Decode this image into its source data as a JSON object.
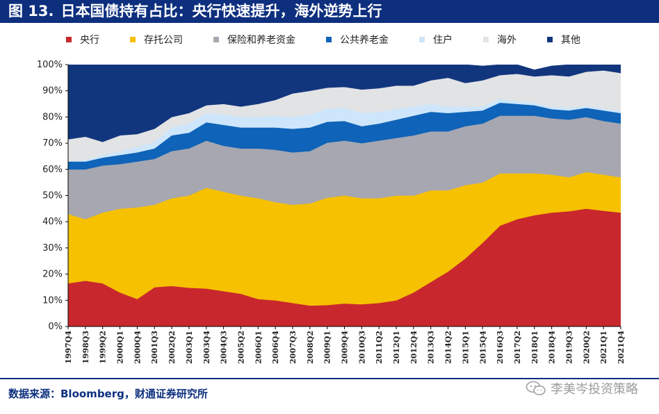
{
  "figure": {
    "number": "图 13.",
    "title": "日本国债持有占比：央行快速提升，海外逆势上行"
  },
  "footer": {
    "source": "数据来源：Bloomberg，财通证券研究所",
    "watermark": "李美岑投资策略"
  },
  "colors": {
    "title_bg": "#0d2f7e",
    "axis": "#000000"
  },
  "chart_data": {
    "type": "area",
    "stacked": true,
    "title": "",
    "xlabel": "",
    "ylabel": "",
    "ylim": [
      0,
      100
    ],
    "yticks": [
      0,
      10,
      20,
      30,
      40,
      50,
      60,
      70,
      80,
      90,
      100
    ],
    "ytick_labels": [
      "0%",
      "10%",
      "20%",
      "30%",
      "40%",
      "50%",
      "60%",
      "70%",
      "80%",
      "90%",
      "100%"
    ],
    "legend_position": "top",
    "grid": false,
    "x_tick_labels": [
      "1997Q4",
      "1998Q3",
      "1999Q2",
      "2000Q1",
      "2000Q4",
      "2001Q3",
      "2002Q2",
      "2003Q1",
      "2003Q4",
      "2004Q3",
      "2005Q2",
      "2006Q1",
      "2006Q4",
      "2007Q3",
      "2008Q2",
      "2009Q1",
      "2009Q4",
      "2010Q3",
      "2011Q2",
      "2012Q1",
      "2012Q4",
      "2013Q3",
      "2014Q2",
      "2015Q1",
      "2015Q4",
      "2016Q3",
      "2017Q2",
      "2018Q1",
      "2018Q4",
      "2019Q3",
      "2020Q2",
      "2021Q1",
      "2021Q4"
    ],
    "series": [
      {
        "name": "央行",
        "color": "#c8282d",
        "values": [
          16.5,
          17.5,
          16.5,
          13,
          10.5,
          15,
          15.5,
          14.8,
          14.5,
          13.5,
          12.5,
          10.5,
          10,
          9,
          8,
          8.2,
          8.8,
          8.5,
          9,
          10,
          13,
          17,
          21,
          26,
          32,
          38.5,
          41,
          42.5,
          43.5,
          44,
          45,
          44.2,
          43.5
        ]
      },
      {
        "name": "存托公司",
        "color": "#f6c100",
        "values": [
          26.5,
          23.5,
          27,
          32,
          35,
          31.5,
          33.5,
          35.2,
          38.5,
          38,
          37.5,
          38.5,
          37.5,
          37.5,
          39,
          41,
          41.2,
          40.5,
          40,
          40,
          37,
          35,
          31,
          28,
          23,
          20,
          17.5,
          16,
          14.5,
          13,
          14,
          13.8,
          13.5
        ]
      },
      {
        "name": "保险和养老资金",
        "color": "#a6a7b1",
        "values": [
          17,
          19,
          18,
          17,
          17.5,
          17.5,
          18,
          18,
          18,
          17.5,
          18,
          19,
          20,
          20,
          20,
          21,
          21,
          21,
          22,
          22,
          23,
          22.5,
          22.5,
          22.5,
          22.5,
          22,
          22,
          22,
          21.5,
          22,
          21,
          20.5,
          20.5
        ]
      },
      {
        "name": "公共养老金",
        "color": "#0f63b8",
        "values": [
          3,
          3,
          3,
          3.5,
          3.5,
          4,
          6,
          6,
          7,
          8,
          8,
          8,
          8.5,
          9,
          9,
          8,
          7.5,
          6.5,
          6.5,
          7,
          7.5,
          7.5,
          7,
          5.5,
          5,
          5,
          4.5,
          4,
          3.5,
          3.5,
          3.5,
          4,
          4
        ]
      },
      {
        "name": "住户",
        "color": "#cde6fb",
        "values": [
          0,
          0.5,
          1,
          1.5,
          2,
          2.5,
          3,
          3.5,
          3.5,
          4,
          4,
          4,
          4.5,
          4.5,
          5,
          5,
          5,
          5,
          4.5,
          4,
          3.5,
          3,
          2.5,
          2,
          1.5,
          1.5,
          1,
          1,
          1,
          1,
          0.8,
          0.8,
          0.8
        ]
      },
      {
        "name": "海外",
        "color": "#e2e3e5",
        "values": [
          8.5,
          9,
          5,
          6,
          5,
          5,
          4,
          4,
          3,
          4,
          4,
          5,
          6,
          9,
          9,
          8,
          8,
          9,
          9,
          9,
          8,
          9,
          11,
          9,
          10,
          9,
          10.5,
          10,
          12,
          12,
          13,
          14.5,
          14.5
        ]
      },
      {
        "name": "其他",
        "color": "#12367e",
        "values": [
          28.5,
          27.5,
          29.5,
          27,
          26.5,
          24.5,
          20,
          18.5,
          15.5,
          15,
          16,
          15,
          13.5,
          11,
          10,
          8.8,
          8.5,
          9.5,
          9,
          8,
          8,
          6,
          5,
          7,
          5.5,
          4,
          3.5,
          2.5,
          3.5,
          4.5,
          2.7,
          2.2,
          3.2
        ]
      }
    ]
  }
}
